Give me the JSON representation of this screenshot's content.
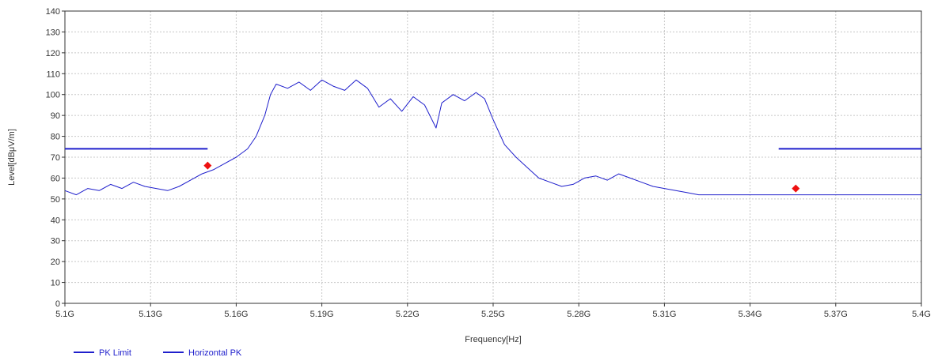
{
  "chart_data": {
    "type": "line",
    "xlabel": "Frequency[Hz]",
    "ylabel": "Level[dBμV/m]",
    "xlim": [
      5.1,
      5.4
    ],
    "ylim": [
      0,
      140
    ],
    "x_ticks": [
      5.1,
      5.13,
      5.16,
      5.19,
      5.22,
      5.25,
      5.28,
      5.31,
      5.34,
      5.37,
      5.4
    ],
    "x_tick_labels": [
      "5.1G",
      "5.13G",
      "5.16G",
      "5.19G",
      "5.22G",
      "5.25G",
      "5.28G",
      "5.31G",
      "5.34G",
      "5.37G",
      "5.4G"
    ],
    "y_ticks": [
      0,
      10,
      20,
      30,
      40,
      50,
      60,
      70,
      80,
      90,
      100,
      110,
      120,
      130,
      140
    ],
    "y_tick_labels": [
      "0",
      "10",
      "20",
      "30",
      "40",
      "50",
      "60",
      "70",
      "80",
      "90",
      "100",
      "110",
      "120",
      "130",
      "140"
    ],
    "grid": true,
    "legend_position": "bottom-left",
    "series": [
      {
        "name": "PK Limit",
        "color": "#1f1fcc",
        "segments": [
          [
            [
              5.1,
              74
            ],
            [
              5.15,
              74
            ]
          ],
          [
            [
              5.35,
              74
            ],
            [
              5.4,
              74
            ]
          ]
        ]
      },
      {
        "name": "Horizontal PK",
        "color": "#1f1fcc",
        "points": [
          [
            5.1,
            54
          ],
          [
            5.104,
            52
          ],
          [
            5.108,
            55
          ],
          [
            5.112,
            54
          ],
          [
            5.116,
            57
          ],
          [
            5.12,
            55
          ],
          [
            5.124,
            58
          ],
          [
            5.128,
            56
          ],
          [
            5.132,
            55
          ],
          [
            5.136,
            54
          ],
          [
            5.14,
            56
          ],
          [
            5.144,
            59
          ],
          [
            5.148,
            62
          ],
          [
            5.152,
            64
          ],
          [
            5.156,
            67
          ],
          [
            5.16,
            70
          ],
          [
            5.164,
            74
          ],
          [
            5.167,
            80
          ],
          [
            5.17,
            90
          ],
          [
            5.172,
            100
          ],
          [
            5.174,
            105
          ],
          [
            5.178,
            103
          ],
          [
            5.182,
            106
          ],
          [
            5.186,
            102
          ],
          [
            5.19,
            107
          ],
          [
            5.194,
            104
          ],
          [
            5.198,
            102
          ],
          [
            5.202,
            107
          ],
          [
            5.206,
            103
          ],
          [
            5.21,
            94
          ],
          [
            5.214,
            98
          ],
          [
            5.218,
            92
          ],
          [
            5.222,
            99
          ],
          [
            5.226,
            95
          ],
          [
            5.23,
            84
          ],
          [
            5.232,
            96
          ],
          [
            5.236,
            100
          ],
          [
            5.24,
            97
          ],
          [
            5.244,
            101
          ],
          [
            5.247,
            98
          ],
          [
            5.25,
            88
          ],
          [
            5.254,
            76
          ],
          [
            5.258,
            70
          ],
          [
            5.262,
            65
          ],
          [
            5.266,
            60
          ],
          [
            5.27,
            58
          ],
          [
            5.274,
            56
          ],
          [
            5.278,
            57
          ],
          [
            5.282,
            60
          ],
          [
            5.286,
            61
          ],
          [
            5.29,
            59
          ],
          [
            5.294,
            62
          ],
          [
            5.298,
            60
          ],
          [
            5.302,
            58
          ],
          [
            5.306,
            56
          ],
          [
            5.31,
            55
          ],
          [
            5.314,
            54
          ],
          [
            5.318,
            53
          ],
          [
            5.322,
            52
          ],
          [
            5.33,
            52
          ],
          [
            5.34,
            52
          ],
          [
            5.35,
            52
          ],
          [
            5.36,
            52
          ],
          [
            5.37,
            52
          ],
          [
            5.38,
            52
          ],
          [
            5.39,
            52
          ],
          [
            5.4,
            52
          ]
        ]
      }
    ],
    "markers": [
      {
        "x": 5.15,
        "y": 66,
        "color": "#ee1111"
      },
      {
        "x": 5.356,
        "y": 55,
        "color": "#ee1111"
      }
    ]
  },
  "legend": {
    "items": [
      {
        "label": "PK Limit",
        "color": "#1f1fcc"
      },
      {
        "label": "Horizontal PK",
        "color": "#1f1fcc"
      }
    ]
  }
}
